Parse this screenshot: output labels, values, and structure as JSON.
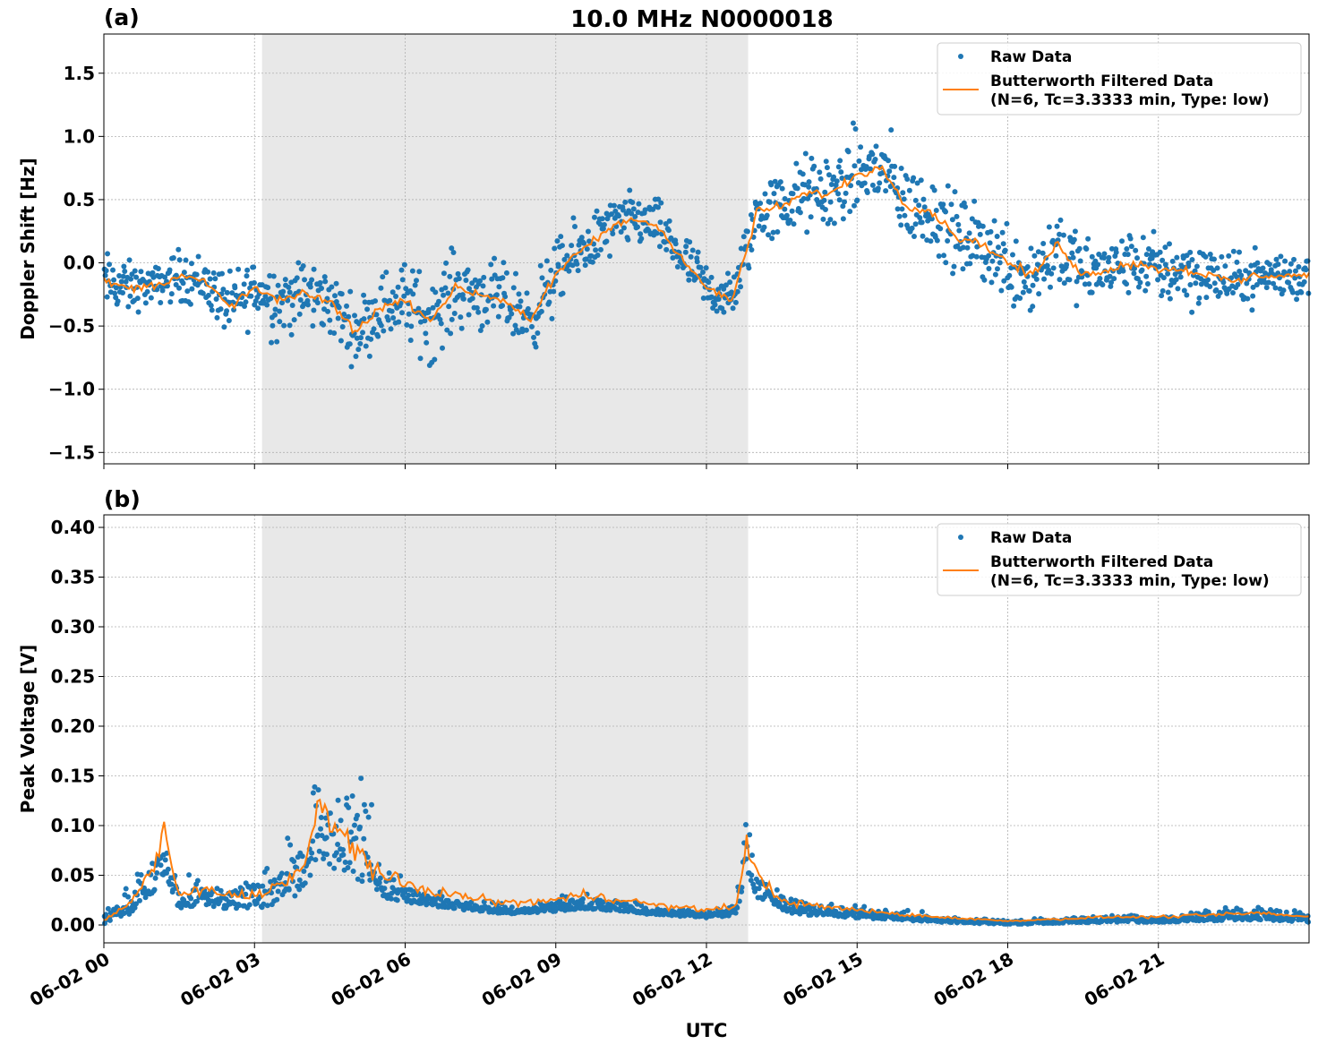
{
  "title": "10.0 MHz N0000018",
  "xlabel": "UTC",
  "x_tick_labels": [
    "06-02 00",
    "06-02 03",
    "06-02 06",
    "06-02 09",
    "06-02 12",
    "06-02 15",
    "06-02 18",
    "06-02 21"
  ],
  "colors": {
    "raw": "#1f77b4",
    "filtered": "#ff7f0e",
    "shade": "#e8e8e8",
    "grid": "#b0b0b0"
  },
  "chart_data": [
    {
      "panel_label": "(a)",
      "type": "scatter+line",
      "ylabel": "Doppler Shift [Hz]",
      "xlim_hours": [
        0,
        24
      ],
      "ylim": [
        -1.59,
        1.81
      ],
      "yticks": [
        -1.5,
        -1.0,
        -0.5,
        0.0,
        0.5,
        1.0,
        1.5
      ],
      "ytick_labels": [
        "−1.5",
        "−1.0",
        "−0.5",
        "0.0",
        "0.5",
        "1.0",
        "1.5"
      ],
      "grid": true,
      "shaded_interval_hours": [
        3.15,
        12.83
      ],
      "legend": {
        "placement": "top-right",
        "entries": [
          "Raw Data",
          "Butterworth Filtered Data\n(N=6, Tc=3.3333 min, Type: low)"
        ]
      },
      "filtered": {
        "x_hours": [
          0,
          0.5,
          1,
          1.5,
          2,
          2.5,
          3,
          3.5,
          4,
          4.5,
          5,
          5.5,
          6,
          6.5,
          7,
          7.5,
          8,
          8.5,
          9,
          9.5,
          10,
          10.5,
          11,
          11.5,
          12,
          12.5,
          12.8,
          13,
          13.5,
          14,
          14.5,
          15,
          15.5,
          16,
          16.5,
          17,
          17.5,
          18,
          18.5,
          19,
          19.5,
          20,
          20.5,
          21,
          21.5,
          22,
          22.5,
          23,
          23.5,
          24
        ],
        "y": [
          -0.15,
          -0.2,
          -0.18,
          -0.1,
          -0.15,
          -0.35,
          -0.2,
          -0.3,
          -0.25,
          -0.3,
          -0.55,
          -0.35,
          -0.3,
          -0.45,
          -0.2,
          -0.25,
          -0.3,
          -0.45,
          -0.1,
          0.1,
          0.25,
          0.35,
          0.3,
          0.05,
          -0.2,
          -0.3,
          0.1,
          0.4,
          0.45,
          0.55,
          0.55,
          0.7,
          0.75,
          0.45,
          0.4,
          0.2,
          0.15,
          0.0,
          -0.1,
          0.15,
          -0.1,
          -0.05,
          0.0,
          -0.05,
          -0.05,
          -0.1,
          -0.15,
          -0.1,
          -0.1,
          -0.1
        ]
      },
      "raw_spread": [
        0.35,
        0.3,
        0.2,
        0.3,
        0.3,
        0.35,
        0.4,
        0.45,
        0.4,
        0.4,
        0.35,
        0.4,
        0.45,
        0.5,
        0.45,
        0.4,
        0.4,
        0.4,
        0.4,
        0.35,
        0.35,
        0.3,
        0.3,
        0.3,
        0.3,
        0.3,
        0.35,
        0.35,
        0.4,
        0.45,
        0.45,
        0.5,
        0.5,
        0.45,
        0.45,
        0.45,
        0.45,
        0.5,
        0.5,
        0.5,
        0.4,
        0.35,
        0.35,
        0.4,
        0.45,
        0.35,
        0.3,
        0.3,
        0.3,
        0.3
      ]
    },
    {
      "panel_label": "(b)",
      "type": "scatter+line",
      "ylabel": "Peak Voltage [V]",
      "xlim_hours": [
        0,
        24
      ],
      "ylim": [
        -0.018,
        0.4126
      ],
      "yticks": [
        0,
        0.05,
        0.1,
        0.15,
        0.2,
        0.25,
        0.3,
        0.35,
        0.4
      ],
      "ytick_labels": [
        "0.00",
        "0.05",
        "0.10",
        "0.15",
        "0.20",
        "0.25",
        "0.30",
        "0.35",
        "0.40"
      ],
      "grid": true,
      "shaded_interval_hours": [
        3.15,
        12.83
      ],
      "legend": {
        "placement": "top-right",
        "entries": [
          "Raw Data",
          "Butterworth Filtered Data\n(N=6, Tc=3.3333 min, Type: low)"
        ]
      },
      "filtered": {
        "x_hours": [
          0,
          0.5,
          1,
          1.2,
          1.5,
          2,
          2.5,
          3,
          3.5,
          4,
          4.3,
          4.5,
          5,
          5.5,
          6,
          7,
          8,
          9,
          9.5,
          10,
          11,
          12,
          12.6,
          12.8,
          13,
          13.5,
          14,
          15,
          16,
          17,
          18,
          19,
          20,
          21,
          22,
          23,
          24
        ],
        "y": [
          0.005,
          0.02,
          0.06,
          0.09,
          0.03,
          0.035,
          0.03,
          0.03,
          0.04,
          0.06,
          0.12,
          0.1,
          0.08,
          0.05,
          0.04,
          0.03,
          0.022,
          0.025,
          0.03,
          0.028,
          0.02,
          0.015,
          0.02,
          0.08,
          0.05,
          0.025,
          0.02,
          0.015,
          0.01,
          0.007,
          0.004,
          0.006,
          0.008,
          0.008,
          0.01,
          0.012,
          0.008
        ]
      },
      "raw_spread": [
        0.02,
        0.04,
        0.07,
        0.1,
        0.04,
        0.05,
        0.05,
        0.05,
        0.08,
        0.12,
        0.2,
        0.15,
        0.2,
        0.08,
        0.03,
        0.02,
        0.015,
        0.02,
        0.03,
        0.02,
        0.015,
        0.015,
        0.02,
        0.15,
        0.06,
        0.03,
        0.025,
        0.02,
        0.015,
        0.01,
        0.008,
        0.01,
        0.012,
        0.012,
        0.015,
        0.025,
        0.015
      ]
    }
  ]
}
